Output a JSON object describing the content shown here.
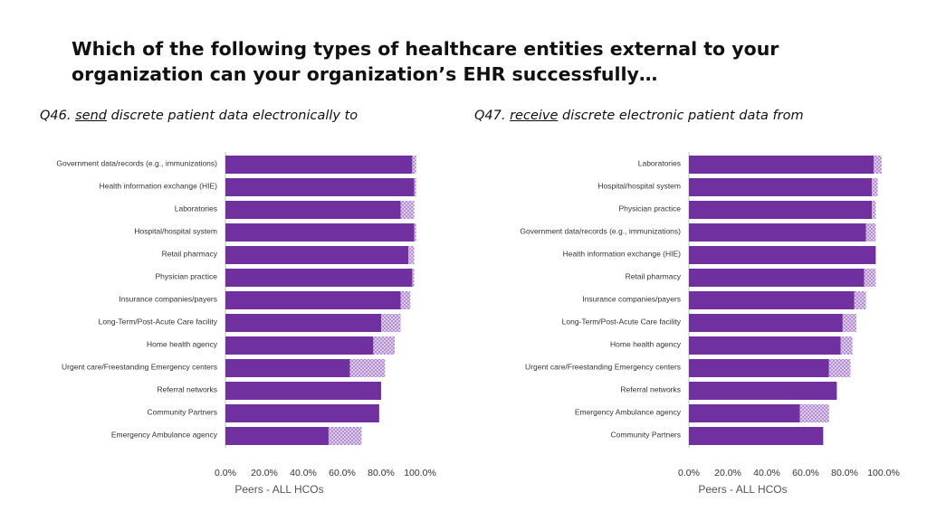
{
  "title": "Which of the following types of healthcare entities external to your organization can your organization’s EHR successfully…",
  "colors": {
    "bar": "#7030a0",
    "partial": "#b48fd0",
    "axis": "#bfbfbf"
  },
  "chart_data": [
    {
      "type": "bar",
      "orientation": "horizontal",
      "stacked": true,
      "label_prefix": "Q46.",
      "label_keyword": "send",
      "label_rest": "discrete patient data electronically to",
      "categories": [
        "Government data/records (e.g., immunizations)",
        "Health information exchange (HIE)",
        "Laboratories",
        "Hospital/hospital system",
        "Retail pharmacy",
        "Physician practice",
        "Insurance companies/payers",
        "Long-Term/Post-Acute Care facility",
        "Home health agency",
        "Urgent care/Freestanding Emergency centers",
        "Referral networks",
        "Community Partners",
        "Emergency Ambulance agency"
      ],
      "series": [
        {
          "values": [
            96,
            97,
            90,
            97,
            94,
            96,
            90,
            80,
            76,
            64,
            80,
            79,
            53
          ]
        },
        {
          "values": [
            2,
            1,
            7,
            1,
            3,
            1,
            5,
            10,
            11,
            18,
            0,
            0,
            17
          ]
        }
      ],
      "xlim": [
        0,
        100
      ],
      "xticks": [
        "0.0%",
        "20.0%",
        "40.0%",
        "60.0%",
        "80.0%",
        "100.0%"
      ],
      "xlabel": "Peers - ALL HCOs"
    },
    {
      "type": "bar",
      "orientation": "horizontal",
      "stacked": true,
      "label_prefix": "Q47.",
      "label_keyword": "receive",
      "label_rest": "discrete electronic patient data from",
      "categories": [
        "Laboratories",
        "Hospital/hospital system",
        "Physician practice",
        "Government data/records (e.g., immunizations)",
        "Health information exchange (HIE)",
        "Retail pharmacy",
        "Insurance companies/payers",
        "Long-Term/Post-Acute Care facility",
        "Home health agency",
        "Urgent care/Freestanding Emergency centers",
        "Referral networks",
        "Emergency Ambulance agency",
        "Community Partners"
      ],
      "series": [
        {
          "values": [
            95,
            94,
            94,
            91,
            96,
            90,
            85,
            79,
            78,
            72,
            76,
            57,
            69
          ]
        },
        {
          "values": [
            4,
            3,
            2,
            5,
            0,
            6,
            6,
            7,
            6,
            11,
            0,
            15,
            0
          ]
        }
      ],
      "xlim": [
        0,
        100
      ],
      "xticks": [
        "0.0%",
        "20.0%",
        "40.0%",
        "60.0%",
        "80.0%",
        "100.0%"
      ],
      "xlabel": "Peers - ALL HCOs"
    }
  ]
}
